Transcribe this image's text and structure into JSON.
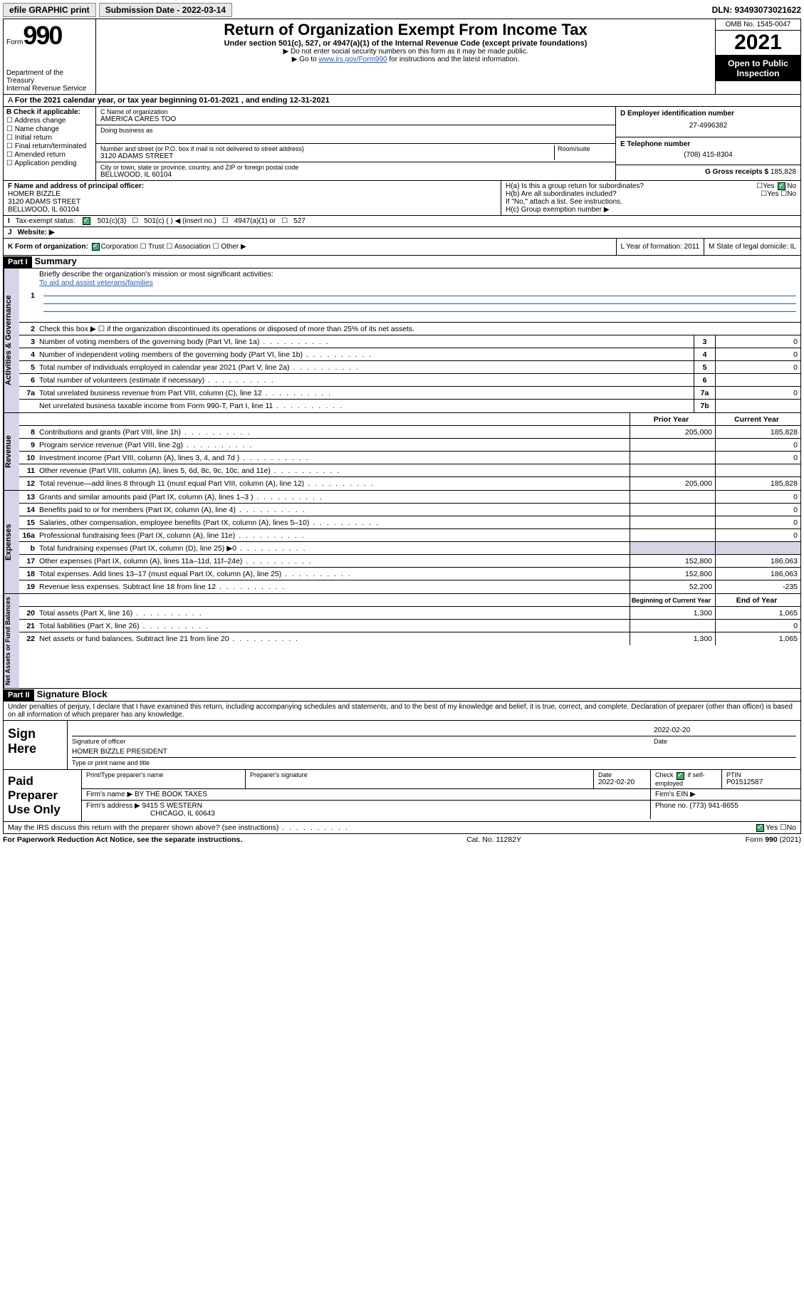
{
  "topbar": {
    "efile": "efile GRAPHIC print",
    "subdate_label": "Submission Date - ",
    "subdate": "2022-03-14",
    "dln": "DLN: 93493073021622"
  },
  "header": {
    "form_word": "Form",
    "form_no": "990",
    "dept1": "Department of the Treasury",
    "dept2": "Internal Revenue Service",
    "title": "Return of Organization Exempt From Income Tax",
    "sub1": "Under section 501(c), 527, or 4947(a)(1) of the Internal Revenue Code (except private foundations)",
    "sub2": "▶ Do not enter social security numbers on this form as it may be made public.",
    "sub3_pre": "▶ Go to ",
    "sub3_link": "www.irs.gov/Form990",
    "sub3_post": " for instructions and the latest information.",
    "omb": "OMB No. 1545-0047",
    "year": "2021",
    "opi": "Open to Public Inspection"
  },
  "rowA": "For the 2021 calendar year, or tax year beginning 01-01-2021   , and ending 12-31-2021",
  "boxB": {
    "label": "B Check if applicable:",
    "opts": [
      "Address change",
      "Name change",
      "Initial return",
      "Final return/terminated",
      "Amended return",
      "Application pending"
    ]
  },
  "boxC": {
    "name_lab": "C Name of organization",
    "name": "AMERICA CARES TOO",
    "dba_lab": "Doing business as",
    "addr_lab": "Number and street (or P.O. box if mail is not delivered to street address)",
    "room_lab": "Room/suite",
    "addr": "3120 ADAMS STREET",
    "city_lab": "City or town, state or province, country, and ZIP or foreign postal code",
    "city": "BELLWOOD, IL  60104"
  },
  "boxD": {
    "lab": "D Employer identification number",
    "val": "27-4996382"
  },
  "boxE": {
    "lab": "E Telephone number",
    "val": "(708) 415-8304"
  },
  "boxG": {
    "lab": "G Gross receipts $",
    "val": "185,828"
  },
  "boxF": {
    "lab": "F  Name and address of principal officer:",
    "l1": "HOMER BIZZLE",
    "l2": "3120 ADAMS STREET",
    "l3": "BELLWOOD, IL  60104"
  },
  "boxH": {
    "ha": "H(a)  Is this a group return for subordinates?",
    "hb": "H(b)  Are all subordinates included?",
    "hb2": "If \"No,\" attach a list. See instructions.",
    "hc": "H(c)  Group exemption number ▶",
    "yes": "Yes",
    "no": "No"
  },
  "rowI": {
    "lab": "Tax-exempt status:",
    "o1": "501(c)(3)",
    "o2": "501(c) (  ) ◀ (insert no.)",
    "o3": "4947(a)(1) or",
    "o4": "527"
  },
  "rowJ": {
    "lab": "Website: ▶"
  },
  "rowK": {
    "lab": "K Form of organization:",
    "o1": "Corporation",
    "o2": "Trust",
    "o3": "Association",
    "o4": "Other ▶",
    "L": "L Year of formation: 2011",
    "M": "M State of legal domicile: IL"
  },
  "partI": {
    "hdr": "Part I",
    "title": "Summary"
  },
  "summary": {
    "q1": "Briefly describe the organization's mission or most significant activities:",
    "mission": "To aid and assist veterans/families",
    "q2": "Check this box ▶ ☐  if the organization discontinued its operations or disposed of more than 25% of its net assets.",
    "lines_gov": [
      {
        "n": "3",
        "t": "Number of voting members of the governing body (Part VI, line 1a)",
        "box": "3",
        "v": "0"
      },
      {
        "n": "4",
        "t": "Number of independent voting members of the governing body (Part VI, line 1b)",
        "box": "4",
        "v": "0"
      },
      {
        "n": "5",
        "t": "Total number of individuals employed in calendar year 2021 (Part V, line 2a)",
        "box": "5",
        "v": "0"
      },
      {
        "n": "6",
        "t": "Total number of volunteers (estimate if necessary)",
        "box": "6",
        "v": ""
      },
      {
        "n": "7a",
        "t": "Total unrelated business revenue from Part VIII, column (C), line 12",
        "box": "7a",
        "v": "0"
      },
      {
        "n": "",
        "t": "Net unrelated business taxable income from Form 990-T, Part I, line 11",
        "box": "7b",
        "v": ""
      }
    ],
    "col_prior": "Prior Year",
    "col_curr": "Current Year",
    "lines_rev": [
      {
        "n": "8",
        "t": "Contributions and grants (Part VIII, line 1h)",
        "p": "205,000",
        "c": "185,828"
      },
      {
        "n": "9",
        "t": "Program service revenue (Part VIII, line 2g)",
        "p": "",
        "c": "0"
      },
      {
        "n": "10",
        "t": "Investment income (Part VIII, column (A), lines 3, 4, and 7d )",
        "p": "",
        "c": "0"
      },
      {
        "n": "11",
        "t": "Other revenue (Part VIII, column (A), lines 5, 6d, 8c, 9c, 10c, and 11e)",
        "p": "",
        "c": ""
      },
      {
        "n": "12",
        "t": "Total revenue—add lines 8 through 11 (must equal Part VIII, column (A), line 12)",
        "p": "205,000",
        "c": "185,828"
      }
    ],
    "lines_exp": [
      {
        "n": "13",
        "t": "Grants and similar amounts paid (Part IX, column (A), lines 1–3 )",
        "p": "",
        "c": "0"
      },
      {
        "n": "14",
        "t": "Benefits paid to or for members (Part IX, column (A), line 4)",
        "p": "",
        "c": "0"
      },
      {
        "n": "15",
        "t": "Salaries, other compensation, employee benefits (Part IX, column (A), lines 5–10)",
        "p": "",
        "c": "0"
      },
      {
        "n": "16a",
        "t": "Professional fundraising fees (Part IX, column (A), line 11e)",
        "p": "",
        "c": "0"
      },
      {
        "n": "b",
        "t": "Total fundraising expenses (Part IX, column (D), line 25) ▶0",
        "p": "SHADE",
        "c": "SHADE"
      },
      {
        "n": "17",
        "t": "Other expenses (Part IX, column (A), lines 11a–11d, 11f–24e)",
        "p": "152,800",
        "c": "186,063"
      },
      {
        "n": "18",
        "t": "Total expenses. Add lines 13–17 (must equal Part IX, column (A), line 25)",
        "p": "152,800",
        "c": "186,063"
      },
      {
        "n": "19",
        "t": "Revenue less expenses. Subtract line 18 from line 12",
        "p": "52,200",
        "c": "-235"
      }
    ],
    "col_beg": "Beginning of Current Year",
    "col_end": "End of Year",
    "lines_na": [
      {
        "n": "20",
        "t": "Total assets (Part X, line 16)",
        "p": "1,300",
        "c": "1,065"
      },
      {
        "n": "21",
        "t": "Total liabilities (Part X, line 26)",
        "p": "",
        "c": "0"
      },
      {
        "n": "22",
        "t": "Net assets or fund balances. Subtract line 21 from line 20",
        "p": "1,300",
        "c": "1,065"
      }
    ]
  },
  "partII": {
    "hdr": "Part II",
    "title": "Signature Block"
  },
  "decl": "Under penalties of perjury, I declare that I have examined this return, including accompanying schedules and statements, and to the best of my knowledge and belief, it is true, correct, and complete. Declaration of preparer (other than officer) is based on all information of which preparer has any knowledge.",
  "sign": {
    "left": "Sign Here",
    "sig_lab": "Signature of officer",
    "date_lab": "Date",
    "date": "2022-02-20",
    "name": "HOMER BIZZLE  PRESIDENT",
    "name_lab": "Type or print name and title"
  },
  "paid": {
    "left": "Paid Preparer Use Only",
    "h1": "Print/Type preparer's name",
    "h2": "Preparer's signature",
    "h3": "Date",
    "h3v": "2022-02-20",
    "h4": "Check ☑ if self-employed",
    "h5": "PTIN",
    "h5v": "P01512587",
    "firm_lab": "Firm's name    ▶",
    "firm": "BY THE BOOK TAXES",
    "ein_lab": "Firm's EIN ▶",
    "addr_lab": "Firm's address ▶",
    "addr1": "9415 S WESTERN",
    "addr2": "CHICAGO, IL  60643",
    "phone_lab": "Phone no.",
    "phone": "(773) 941-8655"
  },
  "footer": {
    "q": "May the IRS discuss this return with the preparer shown above? (see instructions)",
    "yes": "Yes",
    "no": "No",
    "pra": "For Paperwork Reduction Act Notice, see the separate instructions.",
    "cat": "Cat. No. 11282Y",
    "form": "Form 990 (2021)"
  },
  "vtabs": {
    "gov": "Activities & Governance",
    "rev": "Revenue",
    "exp": "Expenses",
    "na": "Net Assets or Fund Balances"
  }
}
